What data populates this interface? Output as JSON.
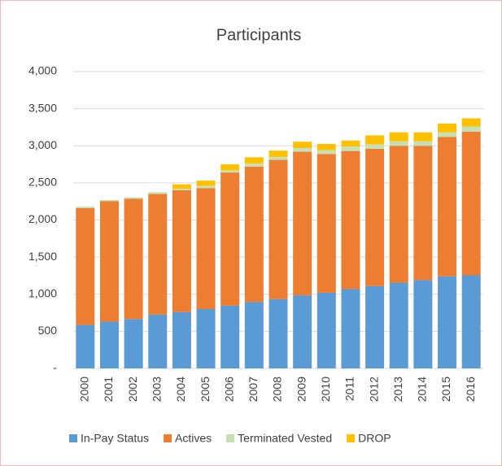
{
  "chart_data": {
    "type": "stacked_bar",
    "title": "Participants",
    "categories": [
      "2000",
      "2001",
      "2002",
      "2003",
      "2004",
      "2005",
      "2006",
      "2007",
      "2008",
      "2009",
      "2010",
      "2011",
      "2012",
      "2013",
      "2014",
      "2015",
      "2016"
    ],
    "series": [
      {
        "name": "In-Pay Status",
        "color": "#5b9bd5",
        "values": [
          585,
          630,
          665,
          725,
          760,
          800,
          845,
          895,
          935,
          985,
          1020,
          1070,
          1110,
          1155,
          1190,
          1240,
          1255
        ]
      },
      {
        "name": "Actives",
        "color": "#ed7d31",
        "values": [
          1575,
          1625,
          1620,
          1625,
          1640,
          1630,
          1795,
          1825,
          1875,
          1935,
          1870,
          1860,
          1850,
          1845,
          1810,
          1880,
          1935
        ]
      },
      {
        "name": "Terminated Vested",
        "color": "#c5e0b4",
        "values": [
          20,
          15,
          20,
          25,
          20,
          30,
          30,
          40,
          40,
          50,
          50,
          60,
          60,
          60,
          60,
          60,
          70
        ]
      },
      {
        "name": "DROP",
        "color": "#ffc000",
        "values": [
          0,
          0,
          0,
          0,
          60,
          70,
          80,
          85,
          85,
          85,
          85,
          80,
          120,
          120,
          120,
          120,
          110
        ]
      }
    ],
    "ylim": [
      0,
      4000
    ],
    "yticks": [
      {
        "value": 0,
        "label": "-"
      },
      500,
      {
        "value": 1000,
        "label": "1,000"
      },
      {
        "value": 1500,
        "label": "1,500"
      },
      {
        "value": 2000,
        "label": "2,000"
      },
      {
        "value": 2500,
        "label": "2,500"
      },
      {
        "value": 3000,
        "label": "3,000"
      },
      {
        "value": 3500,
        "label": "3,500"
      },
      {
        "value": 4000,
        "label": "4,000"
      }
    ],
    "grid": true
  }
}
